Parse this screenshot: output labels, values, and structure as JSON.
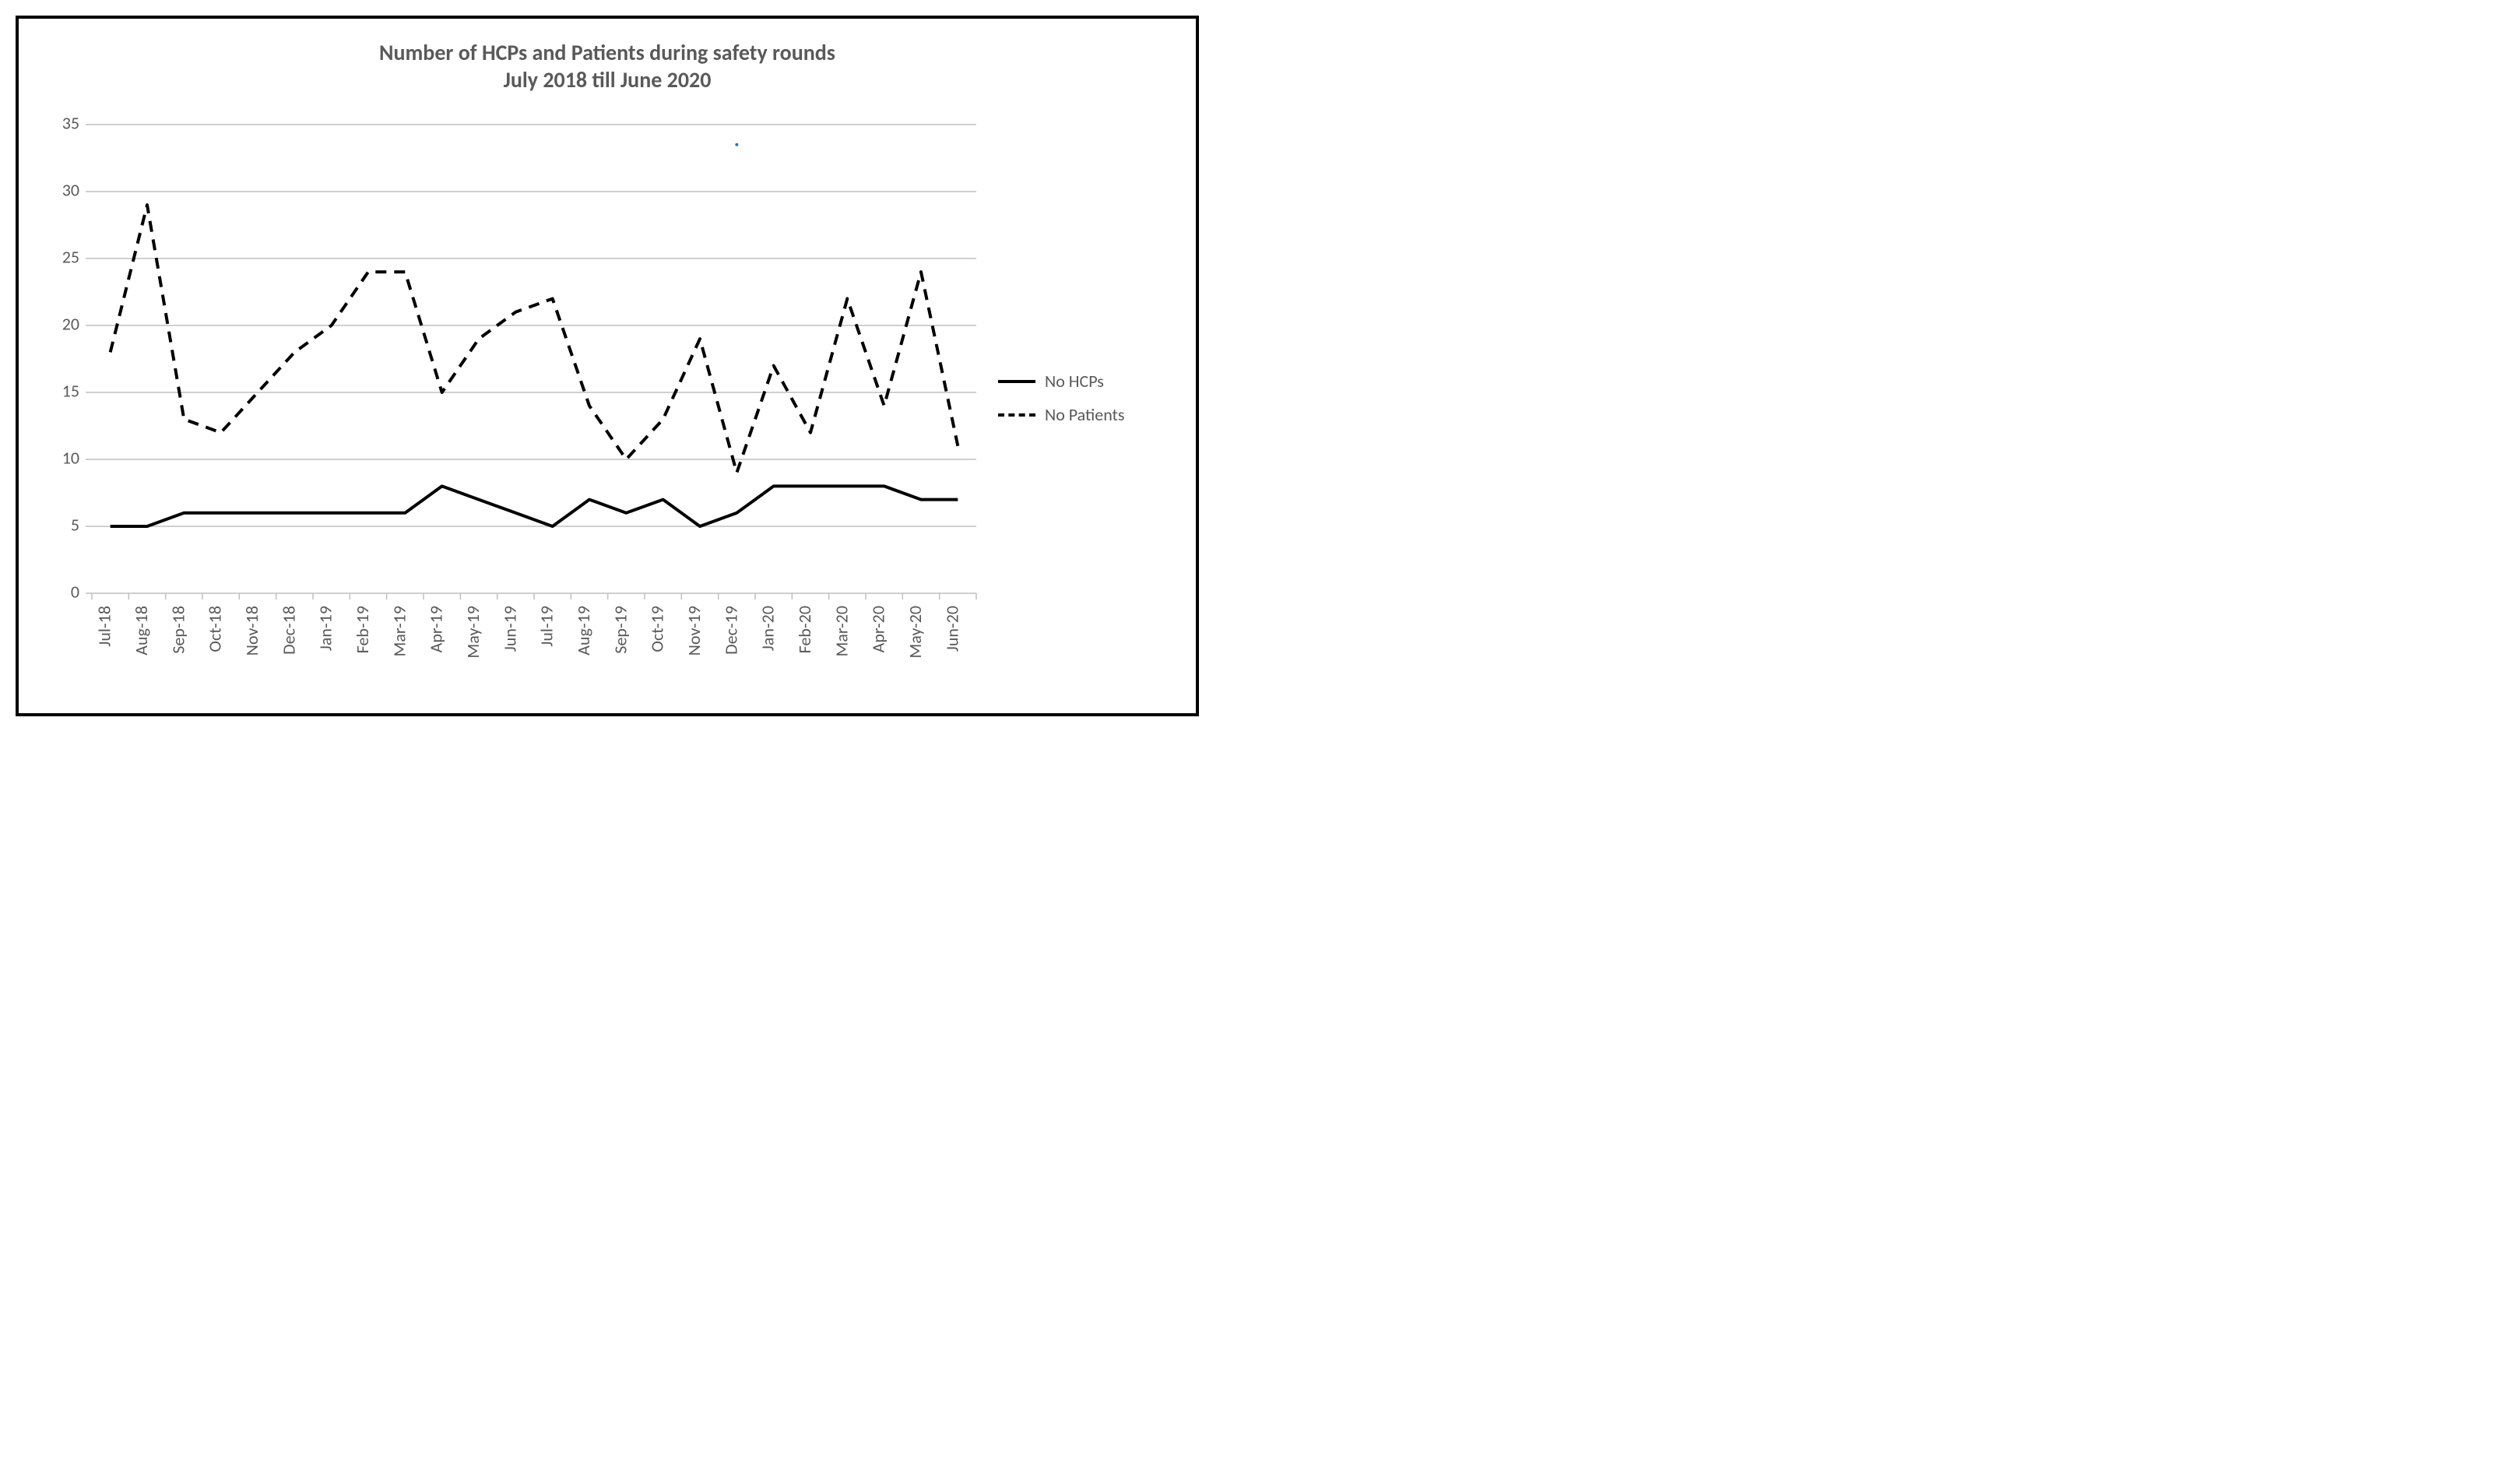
{
  "chart": {
    "type": "line",
    "title_line1": "Number of HCPs and Patients during safety rounds",
    "title_line2": "July 2018 till June 2020",
    "title_fontsize": 28,
    "title_color": "#595959",
    "background_color": "#ffffff",
    "frame_border_color": "#000000",
    "frame_border_width": 4,
    "plot": {
      "grid_color": "#bfbfbf",
      "grid_width": 1.5,
      "axis_line_color": "#bfbfbf",
      "tick_color": "#bfbfbf",
      "tick_length": 8,
      "label_color": "#595959",
      "label_fontsize": 22,
      "ylim": [
        0,
        35
      ],
      "ytick_step": 5,
      "yticks": [
        0,
        5,
        10,
        15,
        20,
        25,
        30,
        35
      ],
      "categories": [
        "Jul-18",
        "Aug-18",
        "Sep-18",
        "Oct-18",
        "Nov-18",
        "Dec-18",
        "Jan-19",
        "Feb-19",
        "Mar-19",
        "Apr-19",
        "May-19",
        "Jun-19",
        "Jul-19",
        "Aug-19",
        "Sep-19",
        "Oct-19",
        "Nov-19",
        "Dec-19",
        "Jan-20",
        "Feb-20",
        "Mar-20",
        "Apr-20",
        "May-20",
        "Jun-20"
      ],
      "x_label_rotation": -90
    },
    "series": [
      {
        "name": "No HCPs",
        "color": "#000000",
        "line_width": 4,
        "dash": "solid",
        "values": [
          5,
          5,
          6,
          6,
          6,
          6,
          6,
          6,
          6,
          8,
          7,
          6,
          5,
          7,
          6,
          7,
          5,
          6,
          8,
          8,
          8,
          8,
          7,
          7
        ]
      },
      {
        "name": "No Patients",
        "color": "#000000",
        "line_width": 4,
        "dash": "dashed",
        "values": [
          18,
          29,
          13,
          12,
          15,
          18,
          20,
          24,
          24,
          15,
          19,
          21,
          22,
          14,
          10,
          13,
          19,
          9,
          17,
          12,
          22,
          14,
          24,
          11
        ]
      }
    ],
    "legend": {
      "position": "right",
      "fontsize": 22,
      "text_color": "#595959",
      "items": [
        {
          "label": "No HCPs",
          "style": "solid"
        },
        {
          "label": "No Patients",
          "style": "dashed"
        }
      ]
    },
    "stray_mark": {
      "comment": "small blue dot artifact visible near top-right area",
      "approx_category_index": 17,
      "approx_y_value": 33.5,
      "color": "#2e75b6",
      "radius": 2
    }
  }
}
